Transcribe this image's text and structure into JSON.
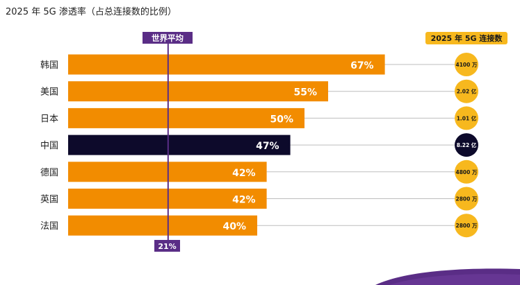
{
  "title": "2025 年 5G 渗透率（占总连接数的比例）",
  "colors": {
    "bar": "#F28C00",
    "highlight": "#0D0A2B",
    "average_marker": "#5A2D86",
    "bubble": "#F7B81E",
    "bubble_highlight": "#0D0A2B",
    "connector": "#BDBDBD"
  },
  "chart_data": {
    "type": "bar",
    "orientation": "horizontal",
    "title": "2025 年 5G 渗透率（占总连接数的比例）",
    "xlim": [
      0,
      80
    ],
    "categories": [
      "韩国",
      "美国",
      "日本",
      "中国",
      "德国",
      "英国",
      "法国"
    ],
    "values": [
      67,
      55,
      50,
      47,
      42,
      42,
      40
    ],
    "value_labels": [
      "67%",
      "55%",
      "50%",
      "47%",
      "42%",
      "42%",
      "40%"
    ],
    "highlight_category": "中国",
    "average": {
      "label": "世界平均",
      "value": 21,
      "value_label": "21%"
    },
    "connections": {
      "header": "2025 年 5G 连接数",
      "labels": [
        "4100 万",
        "2.02 亿",
        "1.01 亿",
        "8.22 亿",
        "4800 万",
        "2800 万",
        "2800 万"
      ]
    }
  }
}
